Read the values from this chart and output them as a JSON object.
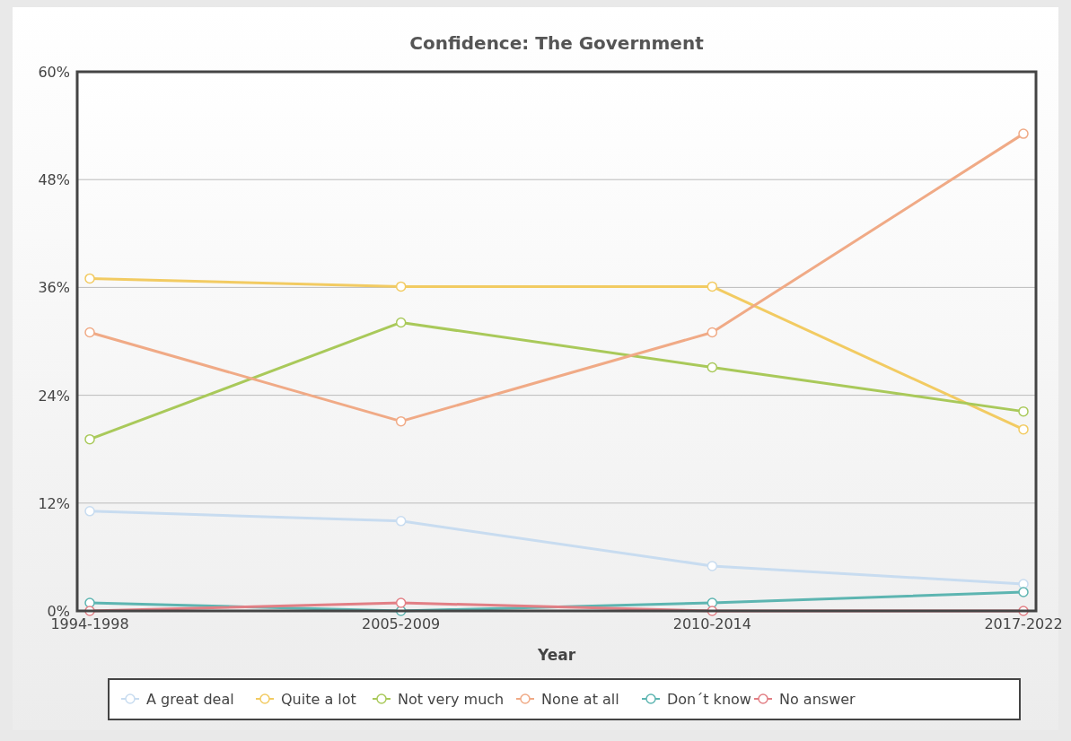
{
  "chart_data": {
    "type": "line",
    "title": "Confidence: The Government",
    "xlabel": "Year",
    "categories": [
      "1994-1998",
      "2005-2009",
      "2010-2014",
      "2017-2022"
    ],
    "series": [
      {
        "name": "A great deal",
        "color": "#c8dcf0",
        "values": [
          11.1,
          10.0,
          5.0,
          3.0
        ]
      },
      {
        "name": "Quite a lot",
        "color": "#f2cb62",
        "values": [
          37.0,
          36.1,
          36.1,
          20.2
        ]
      },
      {
        "name": "Not very much",
        "color": "#a9c95a",
        "values": [
          19.1,
          32.1,
          27.1,
          22.2
        ]
      },
      {
        "name": "None at all",
        "color": "#f0aa86",
        "values": [
          31.0,
          21.1,
          31.0,
          53.1
        ]
      },
      {
        "name": "Don´t know",
        "color": "#5db5b1",
        "values": [
          0.9,
          0,
          0.9,
          2.1
        ]
      },
      {
        "name": "No answer",
        "color": "#e27f85",
        "values": [
          0,
          0.9,
          0,
          0
        ]
      }
    ],
    "ylim": [
      0,
      60
    ],
    "yticks": [
      {
        "value": 0,
        "label": "0%"
      },
      {
        "value": 12,
        "label": "12%"
      },
      {
        "value": 24,
        "label": "24%"
      },
      {
        "value": 36,
        "label": "36%"
      },
      {
        "value": 48,
        "label": "48%"
      },
      {
        "value": 60,
        "label": "60%"
      }
    ],
    "grid": "y",
    "legend": "bottom",
    "marker": "circle",
    "line_style": "solid"
  }
}
